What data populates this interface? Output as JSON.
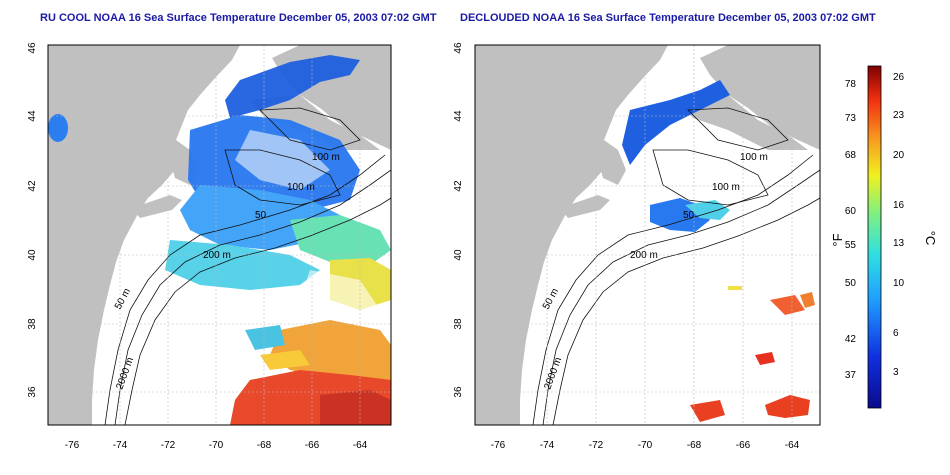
{
  "panels": [
    {
      "title": "RU COOL NOAA 16 Sea Surface Temperature December 05, 2003 07:02 GMT",
      "xticks": [
        "-76",
        "-74",
        "-72",
        "-70",
        "-68",
        "-66",
        "-64"
      ],
      "yticks": [
        "46",
        "44",
        "42",
        "40",
        "38",
        "36"
      ],
      "contour_labels": [
        "100 m",
        "100 m",
        "50",
        "200 m",
        "50 m",
        "2000 m"
      ]
    },
    {
      "title": "DECLOUDED NOAA 16 Sea Surface Temperature December 05, 2003 07:02 GMT",
      "xticks": [
        "-76",
        "-74",
        "-72",
        "-70",
        "-68",
        "-66",
        "-64"
      ],
      "yticks": [
        "46",
        "44",
        "42",
        "40",
        "38",
        "36"
      ],
      "contour_labels": [
        "100 m",
        "100 m",
        "50",
        "200 m",
        "50 m",
        "2000 m"
      ]
    }
  ],
  "colorbar": {
    "f_label": "°F",
    "c_label": "°C",
    "f_ticks": [
      "78",
      "73",
      "68",
      "60",
      "55",
      "50",
      "42",
      "37"
    ],
    "c_ticks": [
      "26",
      "23",
      "20",
      "16",
      "13",
      "10",
      "6",
      "3"
    ]
  },
  "colors": {
    "land": "#c0c0c0",
    "title": "#1a1aa6",
    "cold": "#0a1e9c",
    "warm": "#c81010"
  }
}
